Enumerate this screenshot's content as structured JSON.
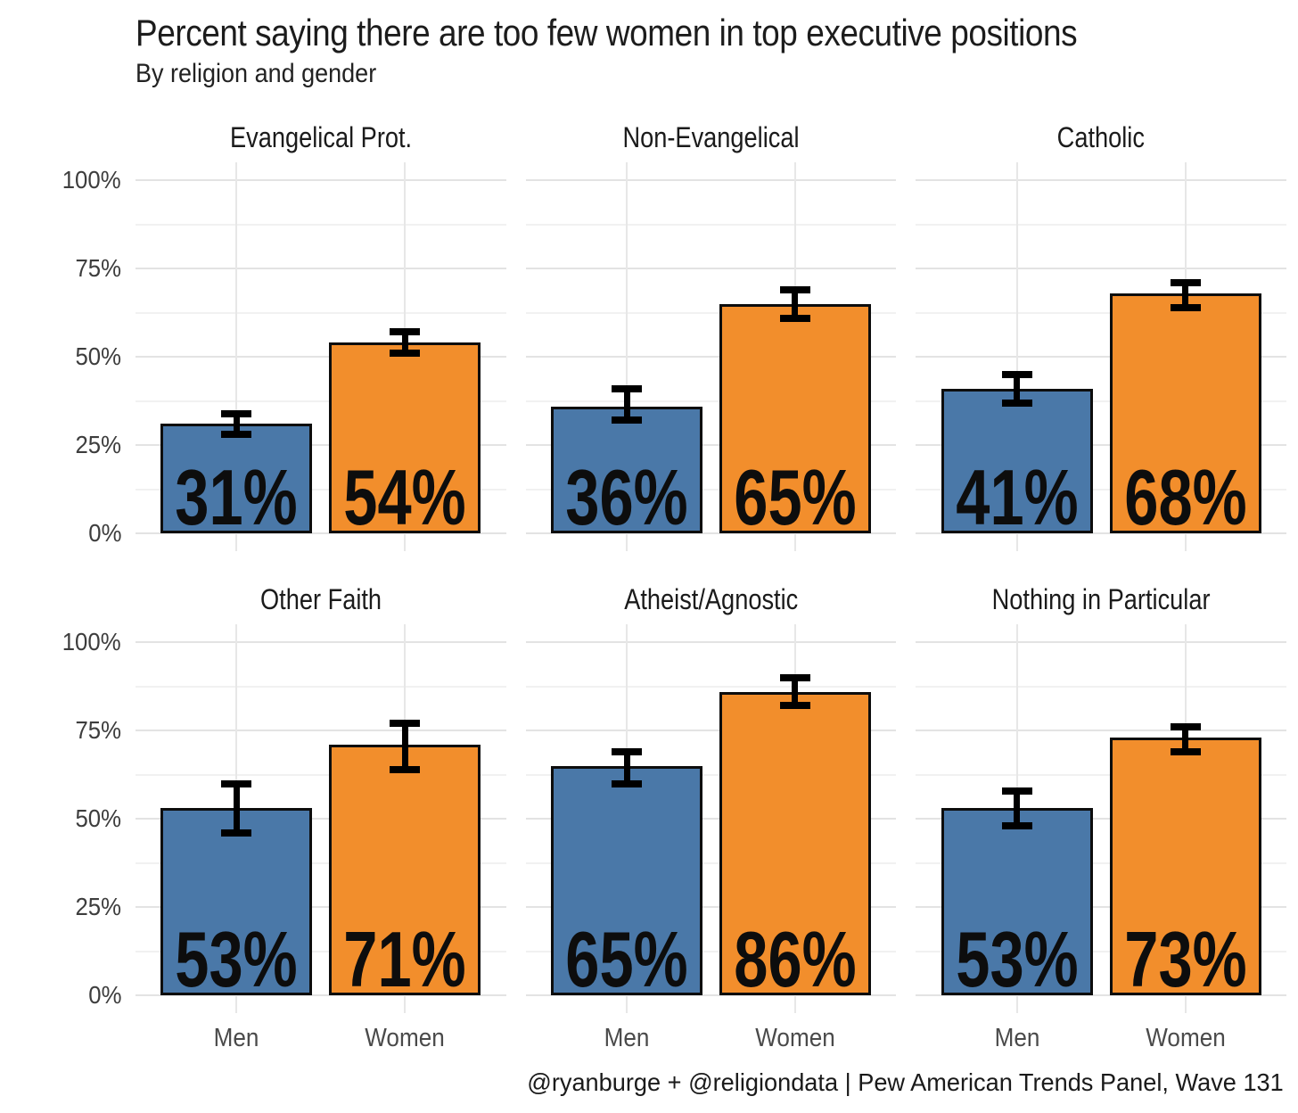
{
  "chart_data": {
    "type": "bar",
    "title": "Percent saying there are too few women in top executive positions",
    "subtitle": "By religion and gender",
    "caption": "@ryanburge + @religiondata | Pew American Trends Panel, Wave 131",
    "categories": [
      "Men",
      "Women"
    ],
    "series_colors": [
      "#4a78a8",
      "#f28e2c"
    ],
    "bar_outline_color": "#0d0d0d",
    "errorbar_color": "#000000",
    "ylim": [
      0,
      100
    ],
    "yticks": [
      "0%",
      "25%",
      "50%",
      "75%",
      "100%"
    ],
    "ytick_step": 25,
    "grid": "major and minor horizontal, vertical at category centers",
    "legend": "none",
    "facets": [
      {
        "title": "Evangelical Prot.",
        "values": [
          {
            "group": "Men",
            "value": 31,
            "label": "31%",
            "ci_low": 28,
            "ci_high": 34
          },
          {
            "group": "Women",
            "value": 54,
            "label": "54%",
            "ci_low": 51,
            "ci_high": 57
          }
        ]
      },
      {
        "title": "Non-Evangelical",
        "values": [
          {
            "group": "Men",
            "value": 36,
            "label": "36%",
            "ci_low": 32,
            "ci_high": 41
          },
          {
            "group": "Women",
            "value": 65,
            "label": "65%",
            "ci_low": 61,
            "ci_high": 69
          }
        ]
      },
      {
        "title": "Catholic",
        "values": [
          {
            "group": "Men",
            "value": 41,
            "label": "41%",
            "ci_low": 37,
            "ci_high": 45
          },
          {
            "group": "Women",
            "value": 68,
            "label": "68%",
            "ci_low": 64,
            "ci_high": 71
          }
        ]
      },
      {
        "title": "Other Faith",
        "values": [
          {
            "group": "Men",
            "value": 53,
            "label": "53%",
            "ci_low": 46,
            "ci_high": 60
          },
          {
            "group": "Women",
            "value": 71,
            "label": "71%",
            "ci_low": 64,
            "ci_high": 77
          }
        ]
      },
      {
        "title": "Atheist/Agnostic",
        "values": [
          {
            "group": "Men",
            "value": 65,
            "label": "65%",
            "ci_low": 60,
            "ci_high": 69
          },
          {
            "group": "Women",
            "value": 86,
            "label": "86%",
            "ci_low": 82,
            "ci_high": 90
          }
        ]
      },
      {
        "title": "Nothing in Particular",
        "values": [
          {
            "group": "Men",
            "value": 53,
            "label": "53%",
            "ci_low": 48,
            "ci_high": 58
          },
          {
            "group": "Women",
            "value": 73,
            "label": "73%",
            "ci_low": 69,
            "ci_high": 76
          }
        ]
      }
    ]
  }
}
